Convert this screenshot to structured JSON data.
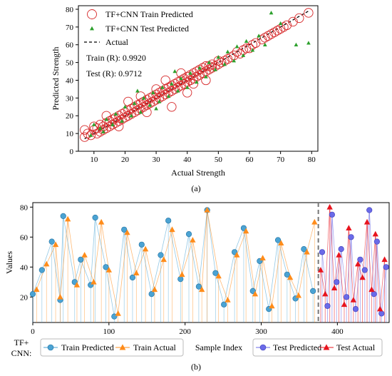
{
  "chart_data": [
    {
      "type": "scatter",
      "caption": "(a)",
      "xlabel": "Actual Strength",
      "ylabel": "Predicted Strength",
      "xlim": [
        5,
        82
      ],
      "ylim": [
        0,
        82
      ],
      "xticks": [
        10,
        20,
        30,
        40,
        50,
        60,
        70,
        80
      ],
      "yticks": [
        0,
        10,
        20,
        30,
        40,
        50,
        60,
        70,
        80
      ],
      "grid": false,
      "legend_position": "top-left",
      "annotations": [
        "Train (R): 0.9920",
        "Test (R): 0.9712"
      ],
      "colors": {
        "train": "#d62728",
        "test": "#2ca02c",
        "actual": "#000000"
      },
      "series": [
        {
          "name": "TF+CNN Train Predicted",
          "marker": "hollow-circle",
          "points": [
            [
              7,
              8
            ],
            [
              7,
              12
            ],
            [
              8,
              10
            ],
            [
              9,
              9
            ],
            [
              10,
              12
            ],
            [
              10,
              14
            ],
            [
              11,
              10
            ],
            [
              11,
              13
            ],
            [
              12,
              11
            ],
            [
              12,
              15
            ],
            [
              13,
              12
            ],
            [
              13,
              14
            ],
            [
              14,
              16
            ],
            [
              14,
              13
            ],
            [
              15,
              14
            ],
            [
              15,
              17
            ],
            [
              16,
              15
            ],
            [
              16,
              18
            ],
            [
              17,
              16
            ],
            [
              17,
              19
            ],
            [
              18,
              17
            ],
            [
              18,
              20
            ],
            [
              19,
              18
            ],
            [
              19,
              21
            ],
            [
              20,
              19
            ],
            [
              20,
              22
            ],
            [
              21,
              20
            ],
            [
              21,
              23
            ],
            [
              22,
              21
            ],
            [
              22,
              24
            ],
            [
              23,
              22
            ],
            [
              23,
              25
            ],
            [
              24,
              23
            ],
            [
              24,
              26
            ],
            [
              25,
              24
            ],
            [
              25,
              27
            ],
            [
              26,
              25
            ],
            [
              26,
              28
            ],
            [
              27,
              26
            ],
            [
              27,
              29
            ],
            [
              28,
              27
            ],
            [
              28,
              30
            ],
            [
              29,
              28
            ],
            [
              29,
              31
            ],
            [
              30,
              29
            ],
            [
              30,
              32
            ],
            [
              31,
              30
            ],
            [
              31,
              33
            ],
            [
              32,
              31
            ],
            [
              32,
              34
            ],
            [
              33,
              32
            ],
            [
              33,
              35
            ],
            [
              34,
              33
            ],
            [
              34,
              36
            ],
            [
              35,
              34
            ],
            [
              35,
              37
            ],
            [
              36,
              35
            ],
            [
              36,
              38
            ],
            [
              37,
              36
            ],
            [
              37,
              39
            ],
            [
              38,
              37
            ],
            [
              38,
              40
            ],
            [
              39,
              38
            ],
            [
              39,
              41
            ],
            [
              40,
              39
            ],
            [
              40,
              42
            ],
            [
              41,
              40
            ],
            [
              41,
              43
            ],
            [
              42,
              41
            ],
            [
              42,
              44
            ],
            [
              43,
              42
            ],
            [
              43,
              45
            ],
            [
              44,
              43
            ],
            [
              44,
              46
            ],
            [
              45,
              44
            ],
            [
              45,
              47
            ],
            [
              46,
              45
            ],
            [
              46,
              48
            ],
            [
              47,
              46
            ],
            [
              47,
              48
            ],
            [
              48,
              47
            ],
            [
              48,
              49
            ],
            [
              49,
              48
            ],
            [
              50,
              49
            ],
            [
              50,
              51
            ],
            [
              51,
              50
            ],
            [
              52,
              51
            ],
            [
              53,
              52
            ],
            [
              54,
              53
            ],
            [
              55,
              54
            ],
            [
              56,
              56
            ],
            [
              57,
              55
            ],
            [
              58,
              57
            ],
            [
              59,
              58
            ],
            [
              60,
              58
            ],
            [
              61,
              60
            ],
            [
              62,
              61
            ],
            [
              64,
              63
            ],
            [
              65,
              64
            ],
            [
              66,
              65
            ],
            [
              67,
              66
            ],
            [
              68,
              67
            ],
            [
              69,
              68
            ],
            [
              70,
              69
            ],
            [
              71,
              70
            ],
            [
              72,
              71
            ],
            [
              74,
              73
            ],
            [
              76,
              75
            ],
            [
              79,
              78
            ],
            [
              14,
              20
            ],
            [
              21,
              28
            ],
            [
              27,
              22
            ],
            [
              33,
              40
            ],
            [
              35,
              25
            ],
            [
              40,
              33
            ],
            [
              42,
              38
            ],
            [
              30,
              35
            ],
            [
              25,
              31
            ],
            [
              18,
              14
            ],
            [
              38,
              44
            ],
            [
              46,
              40
            ]
          ]
        },
        {
          "name": "TF+CNN Test Predicted",
          "marker": "filled-triangle",
          "points": [
            [
              9,
              9
            ],
            [
              10,
              15
            ],
            [
              12,
              13
            ],
            [
              13,
              11
            ],
            [
              14,
              18
            ],
            [
              16,
              15
            ],
            [
              17,
              21
            ],
            [
              19,
              17
            ],
            [
              20,
              25
            ],
            [
              22,
              20
            ],
            [
              23,
              27
            ],
            [
              25,
              22
            ],
            [
              26,
              30
            ],
            [
              28,
              26
            ],
            [
              29,
              33
            ],
            [
              31,
              28
            ],
            [
              32,
              36
            ],
            [
              34,
              31
            ],
            [
              35,
              38
            ],
            [
              37,
              34
            ],
            [
              38,
              41
            ],
            [
              40,
              36
            ],
            [
              41,
              44
            ],
            [
              43,
              39
            ],
            [
              44,
              47
            ],
            [
              46,
              42
            ],
            [
              47,
              50
            ],
            [
              49,
              46
            ],
            [
              50,
              53
            ],
            [
              52,
              49
            ],
            [
              53,
              56
            ],
            [
              55,
              51
            ],
            [
              56,
              59
            ],
            [
              58,
              54
            ],
            [
              59,
              62
            ],
            [
              61,
              57
            ],
            [
              63,
              65
            ],
            [
              65,
              60
            ],
            [
              67,
              78
            ],
            [
              75,
              60
            ],
            [
              79,
              61
            ],
            [
              70,
              72
            ],
            [
              24,
              34
            ],
            [
              36,
              45
            ],
            [
              30,
              24
            ]
          ]
        },
        {
          "name": "Actual",
          "style": "dashed-line",
          "points": [
            [
              7,
              7
            ],
            [
              79,
              79
            ]
          ]
        }
      ]
    },
    {
      "type": "line",
      "caption": "(b)",
      "xlabel": "Sample Index",
      "ylabel": "Values",
      "xlim": [
        0,
        468
      ],
      "ylim": [
        3,
        83
      ],
      "xticks": [
        0,
        100,
        200,
        300,
        400
      ],
      "yticks": [
        20,
        40,
        60,
        80
      ],
      "split_index": 375,
      "legend_prefix": "TF+\nCNN:",
      "legend_position": "bottom (outside)",
      "colors": {
        "train_pred": "#4ba3d3",
        "train_actual": "#ff8c1a",
        "test_pred": "#6a6ae8",
        "test_actual": "#e8141e",
        "split": "#777777"
      },
      "series": [
        {
          "name": "Train Predicted",
          "x": [
            0,
            12,
            25,
            36,
            40,
            55,
            63,
            76,
            82,
            96,
            107,
            120,
            131,
            143,
            156,
            168,
            178,
            194,
            205,
            218,
            229,
            240,
            251,
            265,
            277,
            289,
            298,
            310,
            322,
            334,
            345,
            356,
            368
          ],
          "values": [
            22,
            38,
            57,
            18,
            74,
            30,
            45,
            28,
            73,
            40,
            7,
            65,
            33,
            55,
            22,
            48,
            71,
            32,
            62,
            27,
            78,
            36,
            15,
            50,
            66,
            24,
            44,
            12,
            58,
            35,
            19,
            52,
            24
          ]
        },
        {
          "name": "Train Actual",
          "x": [
            5,
            18,
            30,
            36,
            46,
            58,
            68,
            80,
            90,
            100,
            112,
            124,
            136,
            148,
            160,
            172,
            183,
            196,
            210,
            222,
            229,
            244,
            256,
            268,
            280,
            292,
            302,
            314,
            326,
            338,
            349,
            360,
            370
          ],
          "values": [
            25,
            42,
            55,
            20,
            72,
            28,
            48,
            30,
            70,
            38,
            9,
            63,
            36,
            52,
            25,
            45,
            65,
            35,
            58,
            25,
            78,
            34,
            18,
            48,
            64,
            22,
            46,
            14,
            56,
            33,
            21,
            50,
            70
          ]
        },
        {
          "name": "Test Predicted",
          "x": [
            380,
            387,
            393,
            399,
            405,
            412,
            418,
            424,
            430,
            436,
            442,
            448,
            452,
            458,
            464
          ],
          "values": [
            50,
            14,
            75,
            30,
            52,
            20,
            60,
            12,
            45,
            38,
            78,
            22,
            57,
            9,
            40
          ]
        },
        {
          "name": "Test Actual",
          "x": [
            378,
            384,
            390,
            396,
            402,
            409,
            415,
            421,
            427,
            433,
            439,
            445,
            450,
            456,
            462
          ],
          "values": [
            38,
            22,
            80,
            26,
            48,
            15,
            66,
            18,
            42,
            33,
            70,
            25,
            62,
            12,
            45
          ]
        }
      ]
    }
  ]
}
